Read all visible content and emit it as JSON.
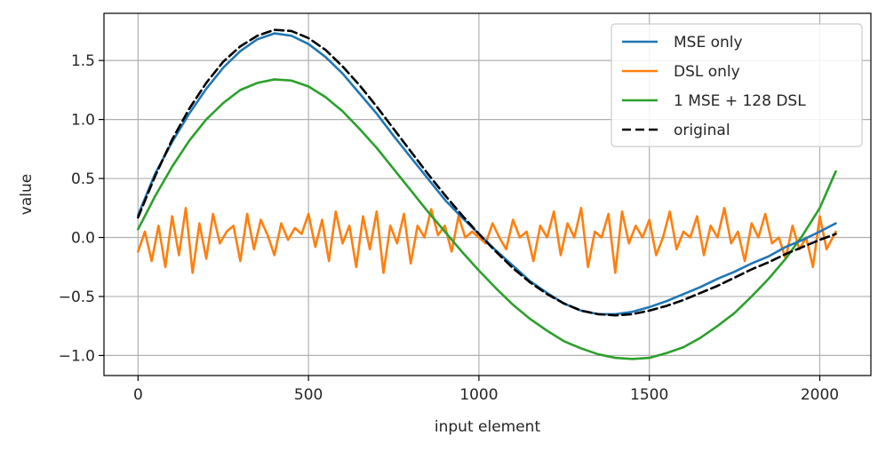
{
  "chart_data": {
    "type": "line",
    "title": "",
    "xlabel": "input element",
    "ylabel": "value",
    "xlim": [
      -100,
      2150
    ],
    "ylim": [
      -1.17,
      1.9
    ],
    "xticks": [
      0,
      500,
      1000,
      1500,
      2000
    ],
    "xtick_labels": [
      "0",
      "500",
      "1000",
      "1500",
      "2000"
    ],
    "yticks": [
      -1.0,
      -0.5,
      0.0,
      0.5,
      1.0,
      1.5
    ],
    "ytick_labels": [
      "−1.0",
      "−0.5",
      "0.0",
      "0.5",
      "1.0",
      "1.5"
    ],
    "grid": true,
    "legend_position": "upper right",
    "series": [
      {
        "name": "MSE only",
        "color": "#1f77b4",
        "style": "solid",
        "points": [
          [
            0,
            0.19
          ],
          [
            50,
            0.54
          ],
          [
            100,
            0.81
          ],
          [
            150,
            1.05
          ],
          [
            200,
            1.26
          ],
          [
            250,
            1.44
          ],
          [
            300,
            1.58
          ],
          [
            350,
            1.68
          ],
          [
            400,
            1.73
          ],
          [
            450,
            1.71
          ],
          [
            500,
            1.64
          ],
          [
            550,
            1.53
          ],
          [
            600,
            1.39
          ],
          [
            650,
            1.22
          ],
          [
            700,
            1.05
          ],
          [
            750,
            0.86
          ],
          [
            800,
            0.68
          ],
          [
            850,
            0.5
          ],
          [
            900,
            0.32
          ],
          [
            950,
            0.17
          ],
          [
            1000,
            0.03
          ],
          [
            1050,
            -0.11
          ],
          [
            1100,
            -0.24
          ],
          [
            1150,
            -0.37
          ],
          [
            1200,
            -0.47
          ],
          [
            1250,
            -0.56
          ],
          [
            1300,
            -0.62
          ],
          [
            1350,
            -0.65
          ],
          [
            1400,
            -0.65
          ],
          [
            1450,
            -0.63
          ],
          [
            1500,
            -0.59
          ],
          [
            1550,
            -0.54
          ],
          [
            1600,
            -0.48
          ],
          [
            1650,
            -0.42
          ],
          [
            1700,
            -0.35
          ],
          [
            1750,
            -0.29
          ],
          [
            1800,
            -0.22
          ],
          [
            1850,
            -0.16
          ],
          [
            1900,
            -0.08
          ],
          [
            1950,
            -0.02
          ],
          [
            2000,
            0.05
          ],
          [
            2047,
            0.12
          ]
        ]
      },
      {
        "name": "DSL only",
        "color": "#ff7f0e",
        "style": "solid",
        "points": [
          [
            0,
            -0.12
          ],
          [
            20,
            0.05
          ],
          [
            40,
            -0.2
          ],
          [
            60,
            0.1
          ],
          [
            80,
            -0.25
          ],
          [
            100,
            0.18
          ],
          [
            120,
            -0.15
          ],
          [
            140,
            0.25
          ],
          [
            160,
            -0.3
          ],
          [
            180,
            0.12
          ],
          [
            200,
            -0.18
          ],
          [
            220,
            0.2
          ],
          [
            240,
            -0.05
          ],
          [
            260,
            0.05
          ],
          [
            280,
            0.1
          ],
          [
            300,
            -0.2
          ],
          [
            320,
            0.2
          ],
          [
            340,
            -0.1
          ],
          [
            360,
            0.15
          ],
          [
            380,
            0.02
          ],
          [
            400,
            -0.15
          ],
          [
            420,
            0.12
          ],
          [
            440,
            -0.02
          ],
          [
            460,
            0.08
          ],
          [
            480,
            0.03
          ],
          [
            500,
            0.2
          ],
          [
            520,
            -0.08
          ],
          [
            540,
            0.15
          ],
          [
            560,
            -0.2
          ],
          [
            580,
            0.22
          ],
          [
            600,
            -0.05
          ],
          [
            620,
            0.1
          ],
          [
            640,
            -0.25
          ],
          [
            660,
            0.18
          ],
          [
            680,
            -0.1
          ],
          [
            700,
            0.22
          ],
          [
            720,
            -0.3
          ],
          [
            740,
            0.1
          ],
          [
            760,
            -0.05
          ],
          [
            780,
            0.2
          ],
          [
            800,
            -0.22
          ],
          [
            820,
            0.1
          ],
          [
            840,
            0.0
          ],
          [
            860,
            0.24
          ],
          [
            880,
            0.02
          ],
          [
            900,
            0.1
          ],
          [
            920,
            -0.12
          ],
          [
            940,
            0.18
          ],
          [
            960,
            0.0
          ],
          [
            980,
            0.05
          ],
          [
            1000,
            0.0
          ],
          [
            1020,
            -0.05
          ],
          [
            1040,
            0.12
          ],
          [
            1060,
            0.0
          ],
          [
            1080,
            -0.1
          ],
          [
            1100,
            0.15
          ],
          [
            1120,
            0.0
          ],
          [
            1140,
            0.05
          ],
          [
            1160,
            -0.2
          ],
          [
            1180,
            0.1
          ],
          [
            1200,
            0.0
          ],
          [
            1220,
            0.22
          ],
          [
            1240,
            -0.15
          ],
          [
            1260,
            0.12
          ],
          [
            1280,
            0.0
          ],
          [
            1300,
            0.25
          ],
          [
            1320,
            -0.25
          ],
          [
            1340,
            0.05
          ],
          [
            1360,
            0.0
          ],
          [
            1380,
            0.2
          ],
          [
            1400,
            -0.3
          ],
          [
            1420,
            0.22
          ],
          [
            1440,
            -0.05
          ],
          [
            1460,
            0.1
          ],
          [
            1480,
            0.0
          ],
          [
            1500,
            0.15
          ],
          [
            1520,
            -0.15
          ],
          [
            1540,
            0.0
          ],
          [
            1560,
            0.22
          ],
          [
            1580,
            -0.1
          ],
          [
            1600,
            0.05
          ],
          [
            1620,
            0.0
          ],
          [
            1640,
            0.18
          ],
          [
            1660,
            -0.15
          ],
          [
            1680,
            0.1
          ],
          [
            1700,
            0.0
          ],
          [
            1720,
            0.25
          ],
          [
            1740,
            -0.05
          ],
          [
            1760,
            0.05
          ],
          [
            1780,
            -0.2
          ],
          [
            1800,
            0.12
          ],
          [
            1820,
            0.0
          ],
          [
            1840,
            0.2
          ],
          [
            1860,
            -0.05
          ],
          [
            1880,
            0.0
          ],
          [
            1900,
            -0.18
          ],
          [
            1920,
            0.1
          ],
          [
            1940,
            -0.1
          ],
          [
            1960,
            0.0
          ],
          [
            1980,
            -0.25
          ],
          [
            2000,
            0.18
          ],
          [
            2020,
            -0.1
          ],
          [
            2047,
            0.05
          ]
        ]
      },
      {
        "name": "1 MSE + 128 DSL",
        "color": "#2ca02c",
        "style": "solid",
        "points": [
          [
            0,
            0.07
          ],
          [
            50,
            0.35
          ],
          [
            100,
            0.6
          ],
          [
            150,
            0.82
          ],
          [
            200,
            1.0
          ],
          [
            250,
            1.14
          ],
          [
            300,
            1.25
          ],
          [
            350,
            1.31
          ],
          [
            400,
            1.34
          ],
          [
            450,
            1.33
          ],
          [
            500,
            1.28
          ],
          [
            550,
            1.19
          ],
          [
            600,
            1.07
          ],
          [
            650,
            0.92
          ],
          [
            700,
            0.76
          ],
          [
            750,
            0.58
          ],
          [
            800,
            0.4
          ],
          [
            850,
            0.22
          ],
          [
            900,
            0.05
          ],
          [
            950,
            -0.12
          ],
          [
            1000,
            -0.28
          ],
          [
            1050,
            -0.43
          ],
          [
            1100,
            -0.57
          ],
          [
            1150,
            -0.69
          ],
          [
            1200,
            -0.79
          ],
          [
            1250,
            -0.88
          ],
          [
            1300,
            -0.94
          ],
          [
            1350,
            -0.99
          ],
          [
            1400,
            -1.02
          ],
          [
            1450,
            -1.03
          ],
          [
            1500,
            -1.02
          ],
          [
            1550,
            -0.98
          ],
          [
            1600,
            -0.93
          ],
          [
            1650,
            -0.85
          ],
          [
            1700,
            -0.75
          ],
          [
            1750,
            -0.64
          ],
          [
            1800,
            -0.5
          ],
          [
            1850,
            -0.35
          ],
          [
            1900,
            -0.18
          ],
          [
            1950,
            0.02
          ],
          [
            2000,
            0.25
          ],
          [
            2047,
            0.56
          ]
        ]
      },
      {
        "name": "original",
        "color": "#000000",
        "style": "dashed",
        "points": [
          [
            0,
            0.17
          ],
          [
            50,
            0.52
          ],
          [
            100,
            0.83
          ],
          [
            150,
            1.09
          ],
          [
            200,
            1.31
          ],
          [
            250,
            1.49
          ],
          [
            300,
            1.62
          ],
          [
            350,
            1.71
          ],
          [
            400,
            1.76
          ],
          [
            450,
            1.75
          ],
          [
            500,
            1.69
          ],
          [
            550,
            1.59
          ],
          [
            600,
            1.45
          ],
          [
            650,
            1.29
          ],
          [
            700,
            1.11
          ],
          [
            750,
            0.92
          ],
          [
            800,
            0.73
          ],
          [
            850,
            0.54
          ],
          [
            900,
            0.36
          ],
          [
            950,
            0.19
          ],
          [
            1000,
            0.03
          ],
          [
            1050,
            -0.12
          ],
          [
            1100,
            -0.26
          ],
          [
            1150,
            -0.38
          ],
          [
            1200,
            -0.48
          ],
          [
            1250,
            -0.56
          ],
          [
            1300,
            -0.62
          ],
          [
            1350,
            -0.65
          ],
          [
            1400,
            -0.66
          ],
          [
            1450,
            -0.65
          ],
          [
            1500,
            -0.62
          ],
          [
            1550,
            -0.58
          ],
          [
            1600,
            -0.53
          ],
          [
            1650,
            -0.47
          ],
          [
            1700,
            -0.41
          ],
          [
            1750,
            -0.34
          ],
          [
            1800,
            -0.27
          ],
          [
            1850,
            -0.21
          ],
          [
            1900,
            -0.14
          ],
          [
            1950,
            -0.08
          ],
          [
            2000,
            -0.02
          ],
          [
            2047,
            0.03
          ]
        ]
      }
    ]
  }
}
